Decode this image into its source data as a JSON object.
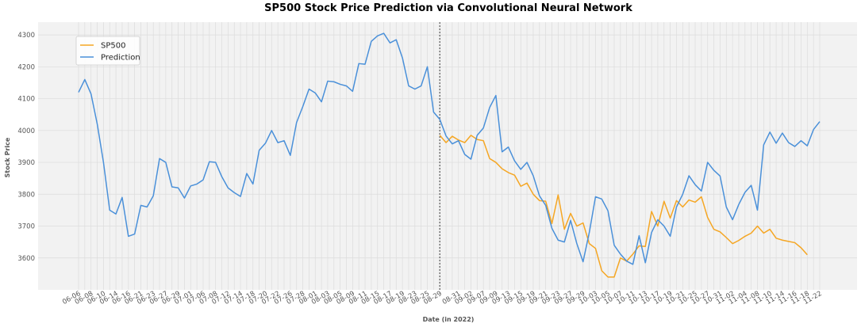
{
  "chart_data": {
    "type": "line",
    "title": "SP500 Stock Price Prediction via Convolutional Neural Network",
    "xlabel": "Date (in 2022)",
    "ylabel": "Stock Price",
    "ylim": [
      3500,
      4340
    ],
    "y_ticks": [
      3600,
      3700,
      3800,
      3900,
      4000,
      4100,
      4200,
      4300
    ],
    "grid": true,
    "legend_placement": "top-left",
    "split_marker_index": 58,
    "x_tick_labels": [
      "06-06",
      "06-08",
      "06-10",
      "06-14",
      "06-16",
      "06-21",
      "06-23",
      "06-27",
      "06-29",
      "07-01",
      "07-06",
      "07-08",
      "07-12",
      "07-14",
      "07-18",
      "07-20",
      "07-22",
      "07-26",
      "07-28",
      "08-01",
      "08-03",
      "08-05",
      "08-09",
      "08-11",
      "08-15",
      "08-17",
      "08-19",
      "08-23",
      "08-25",
      "08-29",
      "08-31",
      "09-02",
      "09-07",
      "09-09",
      "09-13",
      "09-15",
      "09-19",
      "09-21",
      "09-23",
      "09-27",
      "09-29",
      "10-03",
      "10-05",
      "10-07",
      "10-11",
      "10-13",
      "10-17",
      "10-19",
      "10-21",
      "10-25",
      "10-27",
      "10-31",
      "11-02",
      "11-04",
      "11-08",
      "11-10",
      "11-14",
      "11-16",
      "11-18",
      "11-22"
    ],
    "series": [
      {
        "name": "SP500",
        "color": "#f5a623",
        "start_index": 58,
        "values": [
          3985,
          3962,
          3982,
          3970,
          3962,
          3985,
          3972,
          3968,
          3912,
          3900,
          3880,
          3868,
          3860,
          3825,
          3835,
          3800,
          3780,
          3778,
          3708,
          3798,
          3690,
          3740,
          3700,
          3710,
          3645,
          3630,
          3560,
          3540,
          3540,
          3600,
          3590,
          3612,
          3638,
          3636,
          3746,
          3700,
          3778,
          3725,
          3780,
          3760,
          3782,
          3775,
          3792,
          3727,
          3690,
          3682,
          3664,
          3645,
          3655,
          3668,
          3678,
          3700,
          3678,
          3690,
          3662,
          3656,
          3652,
          3648,
          3632,
          3610
        ]
      },
      {
        "name": "Prediction",
        "color": "#4a90d9",
        "start_index": 0,
        "values": [
          4120,
          4160,
          4115,
          4020,
          3900,
          3750,
          3738,
          3790,
          3668,
          3675,
          3765,
          3760,
          3795,
          3912,
          3900,
          3823,
          3820,
          3788,
          3826,
          3832,
          3845,
          3902,
          3900,
          3855,
          3820,
          3805,
          3793,
          3865,
          3832,
          3938,
          3960,
          4000,
          3962,
          3968,
          3922,
          4025,
          4075,
          4130,
          4118,
          4090,
          4155,
          4153,
          4145,
          4140,
          4123,
          4210,
          4208,
          4280,
          4297,
          4305,
          4275,
          4285,
          4228,
          4140,
          4130,
          4140,
          4200,
          4058,
          4035,
          3983,
          3958,
          3968,
          3925,
          3910,
          3985,
          4008,
          4072,
          4110,
          3933,
          3948,
          3905,
          3878,
          3900,
          3858,
          3795,
          3765,
          3693,
          3656,
          3650,
          3718,
          3645,
          3588,
          3680,
          3792,
          3785,
          3748,
          3640,
          3612,
          3590,
          3580,
          3670,
          3585,
          3680,
          3720,
          3700,
          3668,
          3760,
          3800,
          3858,
          3830,
          3810,
          3900,
          3875,
          3857,
          3760,
          3720,
          3768,
          3806,
          3828,
          3750,
          3955,
          3995,
          3960,
          3992,
          3962,
          3950,
          3968,
          3952,
          4003,
          4028
        ]
      }
    ]
  }
}
